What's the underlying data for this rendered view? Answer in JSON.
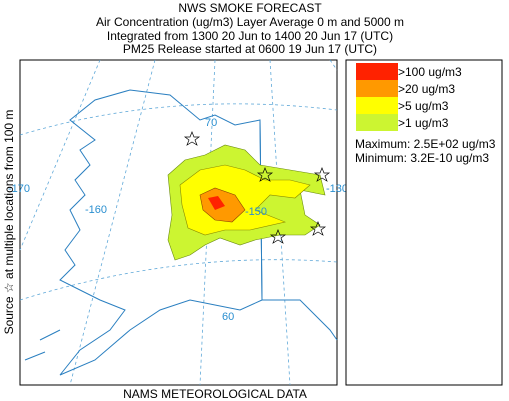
{
  "header": {
    "title": "NWS SMOKE FORECAST",
    "lines": [
      "Air Concentration (ug/m3) Layer Average    0 m and  5000 m",
      "Integrated from 1300 20 Jun to 1400 20 Jun 17 (UTC)",
      "PM25 Release started at 0600 19 Jun 17 (UTC)"
    ]
  },
  "side_label": "Source ☆  at multiple locations  from   100 m",
  "footer": "NAMS METEOROLOGICAL DATA",
  "map_labels": [
    "70",
    "-170",
    "-160",
    "-150",
    "-130",
    "60"
  ],
  "legend": {
    "items": [
      {
        "label": ">100 ug/m3",
        "color": "#ff2200"
      },
      {
        "label": ">20 ug/m3",
        "color": "#ff9900"
      },
      {
        "label": ">5 ug/m3",
        "color": "#ffff00"
      },
      {
        "label": ">1 ug/m3",
        "color": "#ccf531"
      }
    ],
    "maximum": "Maximum: 2.5E+02 ug/m3",
    "minimum": "Minimum: 3.2E-10 ug/m3"
  }
}
